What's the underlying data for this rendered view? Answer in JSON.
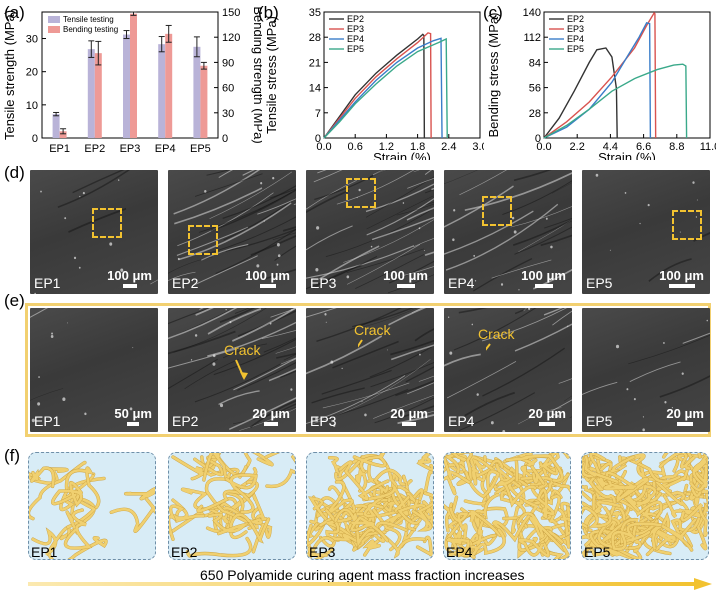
{
  "panels": {
    "a": "(a)",
    "b": "(b)",
    "c": "(c)",
    "d": "(d)",
    "e": "(e)",
    "f": "(f)"
  },
  "chart_data": [
    {
      "type": "bar",
      "categories": [
        "EP1",
        "EP2",
        "EP3",
        "EP4",
        "EP5"
      ],
      "ylabel": "Tensile strength (MPa)",
      "y2label": "Bending strength (MPa)",
      "ylim": [
        0,
        38
      ],
      "y2lim": [
        0,
        150
      ],
      "yticks": [
        0,
        10,
        20,
        30
      ],
      "y2ticks": [
        0,
        30,
        60,
        90,
        120,
        150
      ],
      "series": [
        {
          "name": "Tensile testing",
          "color": "#b9b3d8",
          "axis": "left",
          "values": [
            7.2,
            26.8,
            31.2,
            28.3,
            27.5
          ],
          "errors": [
            0.5,
            2.5,
            1.2,
            2.3,
            3.0
          ]
        },
        {
          "name": "Bending testing",
          "color": "#ee9a96",
          "axis": "right",
          "values": [
            8,
            101,
            148,
            124,
            86
          ],
          "errors": [
            3,
            14,
            2,
            10,
            4
          ]
        }
      ]
    },
    {
      "type": "line",
      "xlabel": "Strain (%)",
      "ylabel": "Tensile stress (MPa)",
      "xlim": [
        0,
        3.0
      ],
      "ylim": [
        0,
        35
      ],
      "xticks": [
        "0.0",
        "0.6",
        "1.2",
        "1.8",
        "2.4",
        "3.0"
      ],
      "yticks": [
        "0",
        "7",
        "14",
        "21",
        "28",
        "35"
      ],
      "series": [
        {
          "name": "EP2",
          "color": "#333333",
          "x": [
            0,
            0.3,
            0.6,
            1.0,
            1.4,
            1.8,
            1.9,
            1.92,
            1.93
          ],
          "y": [
            0,
            6,
            12,
            18,
            23,
            27.5,
            28.8,
            28.5,
            0
          ]
        },
        {
          "name": "EP3",
          "color": "#d9534f",
          "x": [
            0,
            0.3,
            0.6,
            1.0,
            1.4,
            1.8,
            2.0,
            2.05,
            2.06
          ],
          "y": [
            0,
            5.5,
            11,
            17,
            22,
            26.5,
            29.2,
            29,
            0
          ]
        },
        {
          "name": "EP4",
          "color": "#3a7dc9",
          "x": [
            0,
            0.3,
            0.6,
            1.0,
            1.4,
            1.8,
            2.1,
            2.25,
            2.27
          ],
          "y": [
            0,
            5,
            10,
            16,
            21,
            25,
            27,
            27.7,
            0
          ]
        },
        {
          "name": "EP5",
          "color": "#3aa98a",
          "x": [
            0,
            0.3,
            0.6,
            1.0,
            1.4,
            1.8,
            2.2,
            2.35,
            2.37
          ],
          "y": [
            0,
            4.5,
            9.5,
            15,
            20,
            24,
            26.5,
            27.5,
            0
          ]
        }
      ]
    },
    {
      "type": "line",
      "xlabel": "Strain (%)",
      "ylabel": "Bending stress (MPa)",
      "xlim": [
        0,
        11.0
      ],
      "ylim": [
        0,
        140
      ],
      "xticks": [
        "0.0",
        "2.2",
        "4.4",
        "6.6",
        "8.8",
        "11.0"
      ],
      "yticks": [
        "0",
        "28",
        "56",
        "84",
        "112",
        "140"
      ],
      "series": [
        {
          "name": "EP2",
          "color": "#333333",
          "x": [
            0,
            1.0,
            2.0,
            3.0,
            3.5,
            4.1,
            4.5,
            4.8,
            4.85
          ],
          "y": [
            0,
            22,
            52,
            84,
            98,
            100,
            90,
            55,
            0
          ]
        },
        {
          "name": "EP3",
          "color": "#d9534f",
          "x": [
            0,
            1.5,
            3.0,
            4.5,
            6.0,
            6.8,
            7.3,
            7.35,
            7.4
          ],
          "y": [
            0,
            18,
            40,
            68,
            100,
            125,
            139,
            138,
            0
          ]
        },
        {
          "name": "EP4",
          "color": "#3a7dc9",
          "x": [
            0,
            1.5,
            3.0,
            4.5,
            5.5,
            6.3,
            6.8,
            7.0,
            7.05
          ],
          "y": [
            0,
            12,
            32,
            62,
            90,
            112,
            128,
            127,
            0
          ]
        },
        {
          "name": "EP5",
          "color": "#3aa98a",
          "x": [
            0,
            1.5,
            3.0,
            4.5,
            6.0,
            7.5,
            8.6,
            9.2,
            9.4,
            9.45
          ],
          "y": [
            0,
            14,
            32,
            52,
            66,
            76,
            81,
            82,
            80,
            0
          ]
        }
      ]
    }
  ],
  "sem_d": {
    "labels": [
      "EP1",
      "EP2",
      "EP3",
      "EP4",
      "EP5"
    ],
    "scale": [
      "100 μm",
      "100 μm",
      "100 μm",
      "100 μm",
      "100 μm"
    ]
  },
  "sem_e": {
    "labels": [
      "EP1",
      "EP2",
      "EP3",
      "EP4",
      "EP5"
    ],
    "scale": [
      "50 μm",
      "20 μm",
      "20 μm",
      "20 μm",
      "20 μm"
    ],
    "crack": "Crack"
  },
  "schematic_f": {
    "labels": [
      "EP1",
      "EP2",
      "EP3",
      "EP4",
      "EP5"
    ],
    "caption": "650 Polyamide curing agent mass fraction increases",
    "density": [
      14,
      22,
      45,
      55,
      70
    ]
  }
}
